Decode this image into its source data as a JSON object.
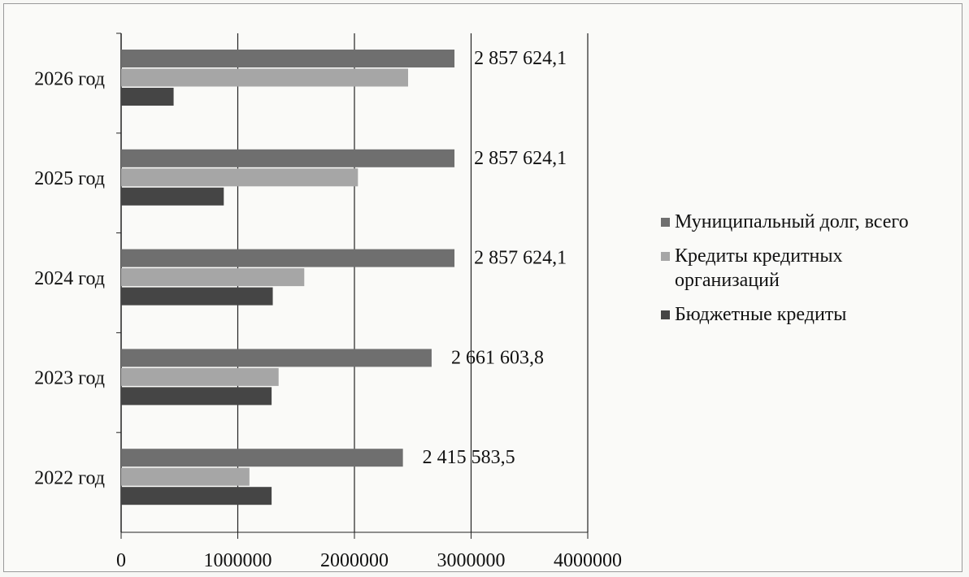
{
  "chart_data": {
    "type": "bar",
    "orientation": "horizontal",
    "categories": [
      "2022 год",
      "2023 год",
      "2024 год",
      "2025 год",
      "2026 год"
    ],
    "series": [
      {
        "name": "Муниципальный долг, всего",
        "color": "#6f6f6f",
        "values": [
          2415583.5,
          2661603.8,
          2857624.1,
          2857624.1,
          2857624.1
        ]
      },
      {
        "name": "Кредиты кредитных организаций",
        "color": "#a6a6a6",
        "values": [
          1100000,
          1350000,
          1570000,
          2030000,
          2460000
        ]
      },
      {
        "name": "Бюджетные кредиты",
        "color": "#454545",
        "values": [
          1290000,
          1290000,
          1300000,
          880000,
          450000
        ]
      }
    ],
    "data_labels": [
      "2 415 583,5",
      "2 661 603,8",
      "2 857 624,1",
      "2 857 624,1",
      "2 857 624,1"
    ],
    "x_ticks": [
      "0",
      "1000000",
      "2000000",
      "3000000",
      "4000000"
    ],
    "xlim": [
      0,
      4000000
    ],
    "grid": true,
    "legend_position": "right",
    "title": "",
    "xlabel": "",
    "ylabel": ""
  }
}
